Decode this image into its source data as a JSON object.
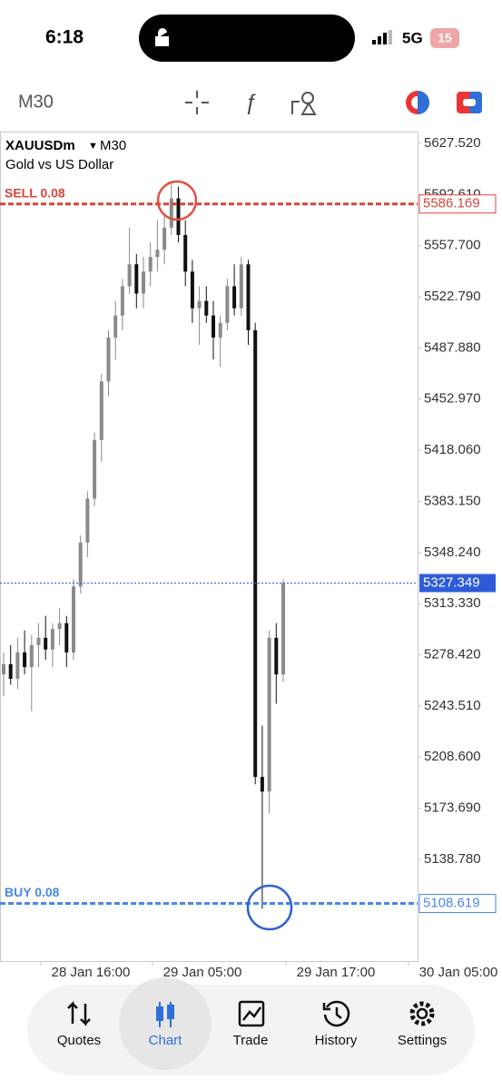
{
  "status_bar": {
    "time": "6:18",
    "network": "5G",
    "battery": "15"
  },
  "toolbar": {
    "timeframe": "M30"
  },
  "chart_data": {
    "type": "candlestick",
    "symbol": "XAUUSDm",
    "timeframe": "M30",
    "description": "Gold vs US Dollar",
    "open": [
      5265,
      5272,
      5262,
      5280,
      5270,
      5285,
      5290,
      5282,
      5296,
      5300,
      5280,
      5325,
      5355,
      5385,
      5425,
      5465,
      5495,
      5510,
      5530,
      5545,
      5525,
      5540,
      5550,
      5555,
      5570,
      5590,
      5565,
      5540,
      5515,
      5520,
      5510,
      5495,
      5505,
      5530,
      5515,
      5545,
      5500,
      5195,
      5185,
      5290,
      5265
    ],
    "high": [
      5280,
      5285,
      5290,
      5295,
      5292,
      5300,
      5305,
      5300,
      5310,
      5305,
      5330,
      5360,
      5390,
      5430,
      5470,
      5500,
      5520,
      5535,
      5570,
      5552,
      5550,
      5560,
      5575,
      5580,
      5600,
      5598,
      5575,
      5548,
      5530,
      5530,
      5520,
      5510,
      5535,
      5545,
      5550,
      5548,
      5505,
      5230,
      5295,
      5300,
      5330
    ],
    "low": [
      5250,
      5258,
      5255,
      5265,
      5240,
      5270,
      5275,
      5270,
      5285,
      5270,
      5275,
      5320,
      5345,
      5380,
      5410,
      5455,
      5480,
      5500,
      5525,
      5515,
      5515,
      5530,
      5540,
      5545,
      5565,
      5560,
      5530,
      5505,
      5490,
      5505,
      5480,
      5475,
      5500,
      5510,
      5510,
      5490,
      5190,
      5105,
      5170,
      5245,
      5260
    ],
    "close": [
      5272,
      5262,
      5280,
      5270,
      5285,
      5290,
      5282,
      5296,
      5300,
      5280,
      5325,
      5355,
      5385,
      5425,
      5465,
      5495,
      5510,
      5530,
      5545,
      5525,
      5540,
      5550,
      5555,
      5570,
      5590,
      5565,
      5540,
      5515,
      5520,
      5510,
      5495,
      5505,
      5530,
      5515,
      5545,
      5500,
      5195,
      5185,
      5290,
      5265,
      5327.349
    ],
    "up_color": "#8a8a8a",
    "down_color": "#111111",
    "ylim": [
      5069.3,
      5635.6
    ],
    "yticks": [
      {
        "value": 5627.52,
        "label": "5627.520"
      },
      {
        "value": 5592.61,
        "label": "5592.610"
      },
      {
        "value": 5557.7,
        "label": "5557.700"
      },
      {
        "value": 5522.79,
        "label": "5522.790"
      },
      {
        "value": 5487.88,
        "label": "5487.880"
      },
      {
        "value": 5452.97,
        "label": "5452.970"
      },
      {
        "value": 5418.06,
        "label": "5418.060"
      },
      {
        "value": 5383.15,
        "label": "5383.150"
      },
      {
        "value": 5348.24,
        "label": "5348.240"
      },
      {
        "value": 5313.33,
        "label": "5313.330"
      },
      {
        "value": 5278.42,
        "label": "5278.420"
      },
      {
        "value": 5243.51,
        "label": "5243.510"
      },
      {
        "value": 5208.6,
        "label": "5208.600"
      },
      {
        "value": 5173.69,
        "label": "5173.690"
      },
      {
        "value": 5138.78,
        "label": "5138.780"
      }
    ],
    "x_labels": [
      "28 Jan 16:00",
      "29 Jan 05:00",
      "29 Jan 17:00",
      "30 Jan 05:00"
    ],
    "orders": [
      {
        "label": "SELL 0.08",
        "price": 5586.169,
        "color": "#d9443a"
      },
      {
        "label": "BUY 0.08",
        "price": 5108.619,
        "color": "#4a86e8"
      }
    ],
    "bid": {
      "price": 5327.349,
      "color": "#2d5bd8"
    }
  },
  "nav": {
    "items": [
      "Quotes",
      "Chart",
      "Trade",
      "History",
      "Settings"
    ],
    "active": 1
  }
}
